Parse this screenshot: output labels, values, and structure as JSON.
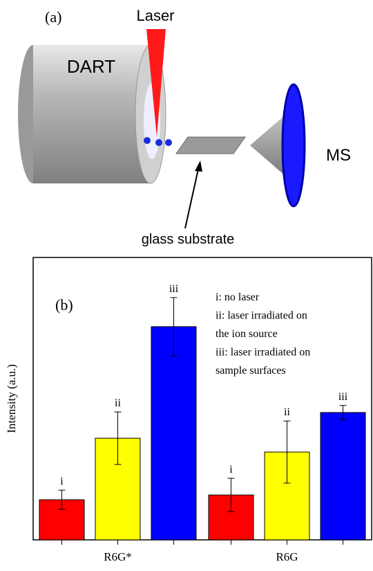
{
  "diagram": {
    "panel_label": "(a)",
    "laser": "Laser",
    "source": "DART",
    "detector": "MS",
    "substrate": "glass substrate"
  },
  "chart_data": {
    "type": "bar",
    "panel_label": "(b)",
    "y_label": "Intensity (a.u.)",
    "categories": [
      "R6G*",
      "R6G"
    ],
    "series": [
      {
        "name": "i",
        "color": "#ff0000",
        "values": [
          14.2,
          15.9
        ],
        "errors": [
          3.4,
          5.9
        ]
      },
      {
        "name": "ii",
        "color": "#ffff00",
        "values": [
          36,
          31.1
        ],
        "errors": [
          9.3,
          11
        ]
      },
      {
        "name": "iii",
        "color": "#0000ff",
        "values": [
          75.5,
          45.1
        ],
        "errors": [
          10.3,
          2.5
        ]
      }
    ],
    "legend_text": [
      "i: no laser",
      "ii: laser irradiated on",
      "the ion source",
      "iii: laser irradiated on",
      "sample surfaces"
    ],
    "ylim": [
      0,
      100
    ]
  }
}
